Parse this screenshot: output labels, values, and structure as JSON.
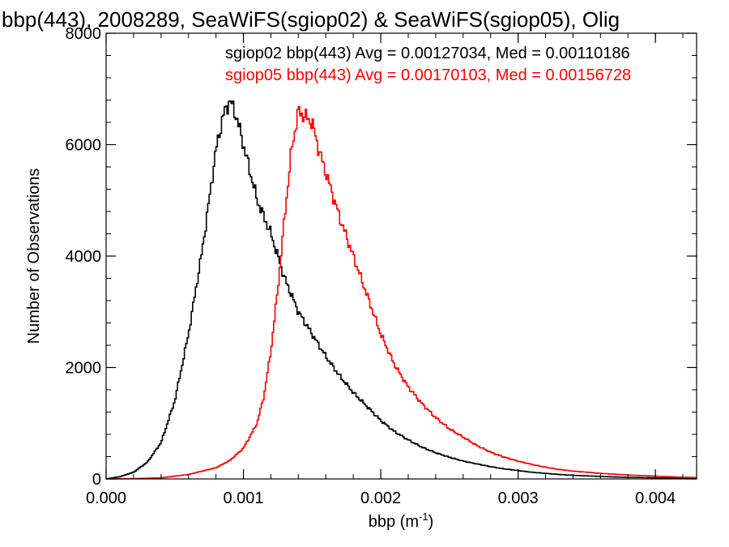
{
  "chart_data": {
    "type": "line",
    "title": "bbp(443), 2008289, SeaWiFS(sgiop02) & SeaWiFS(sgiop05), Olig",
    "xlabel": "bbp (m",
    "xlabel_sup": "-1",
    "xlabel_close": ")",
    "ylabel": "Number of Observations",
    "xlim": [
      0.0,
      0.0043
    ],
    "ylim": [
      0,
      8000
    ],
    "x_ticks": [
      {
        "value": 0.0,
        "label": "0.000"
      },
      {
        "value": 0.001,
        "label": "0.001"
      },
      {
        "value": 0.002,
        "label": "0.002"
      },
      {
        "value": 0.003,
        "label": "0.003"
      },
      {
        "value": 0.004,
        "label": "0.004"
      }
    ],
    "y_ticks": [
      {
        "value": 0,
        "label": "0"
      },
      {
        "value": 2000,
        "label": "2000"
      },
      {
        "value": 4000,
        "label": "4000"
      },
      {
        "value": 6000,
        "label": "6000"
      },
      {
        "value": 8000,
        "label": "8000"
      }
    ],
    "series": [
      {
        "label": "sgiop02 bbp(443) Avg = 0.00127034, Med = 0.00110186",
        "color": "#000000",
        "x": [
          0.0,
          0.0001,
          0.0002,
          0.0003,
          0.0004,
          0.0005,
          0.0006,
          0.0007,
          0.00075,
          0.0008,
          0.00085,
          0.0009,
          0.00095,
          0.001,
          0.00105,
          0.0011,
          0.00115,
          0.0012,
          0.00125,
          0.0013,
          0.00135,
          0.0014,
          0.0015,
          0.0016,
          0.0017,
          0.0018,
          0.0019,
          0.002,
          0.0021,
          0.0022,
          0.0023,
          0.0024,
          0.0025,
          0.0026,
          0.0027,
          0.0028,
          0.0029,
          0.003,
          0.0031,
          0.0032,
          0.0033,
          0.0034,
          0.0035,
          0.0036,
          0.0037,
          0.0038,
          0.0039,
          0.004,
          0.0041,
          0.0042,
          0.0043
        ],
        "y": [
          0,
          40,
          120,
          300,
          650,
          1400,
          2600,
          4100,
          5000,
          5900,
          6500,
          6800,
          6500,
          6000,
          5500,
          5000,
          4700,
          4400,
          4000,
          3600,
          3300,
          3000,
          2600,
          2200,
          1850,
          1550,
          1300,
          1050,
          850,
          700,
          570,
          470,
          390,
          320,
          270,
          220,
          180,
          150,
          120,
          100,
          80,
          65,
          55,
          45,
          35,
          30,
          25,
          20,
          15,
          10,
          8
        ]
      },
      {
        "label": "sgiop05 bbp(443) Avg = 0.00170103, Med = 0.00156728",
        "color": "#ff0000",
        "x": [
          0.0,
          0.0002,
          0.0004,
          0.0006,
          0.0008,
          0.0009,
          0.001,
          0.0011,
          0.00115,
          0.0012,
          0.00125,
          0.0013,
          0.00135,
          0.0014,
          0.00145,
          0.0015,
          0.00155,
          0.0016,
          0.0017,
          0.0018,
          0.0019,
          0.002,
          0.0021,
          0.0022,
          0.0023,
          0.0024,
          0.0025,
          0.0026,
          0.0027,
          0.0028,
          0.0029,
          0.003,
          0.0031,
          0.0032,
          0.0033,
          0.0034,
          0.0035,
          0.0036,
          0.0037,
          0.0038,
          0.0039,
          0.004,
          0.0041,
          0.0042,
          0.0043
        ],
        "y": [
          0,
          5,
          20,
          80,
          200,
          330,
          550,
          1000,
          1500,
          2300,
          3400,
          4700,
          5900,
          6600,
          6500,
          6400,
          5900,
          5500,
          4700,
          4000,
          3300,
          2600,
          2050,
          1650,
          1350,
          1100,
          900,
          750,
          600,
          480,
          390,
          320,
          260,
          210,
          170,
          140,
          120,
          100,
          85,
          70,
          60,
          50,
          40,
          30,
          25
        ]
      }
    ]
  }
}
